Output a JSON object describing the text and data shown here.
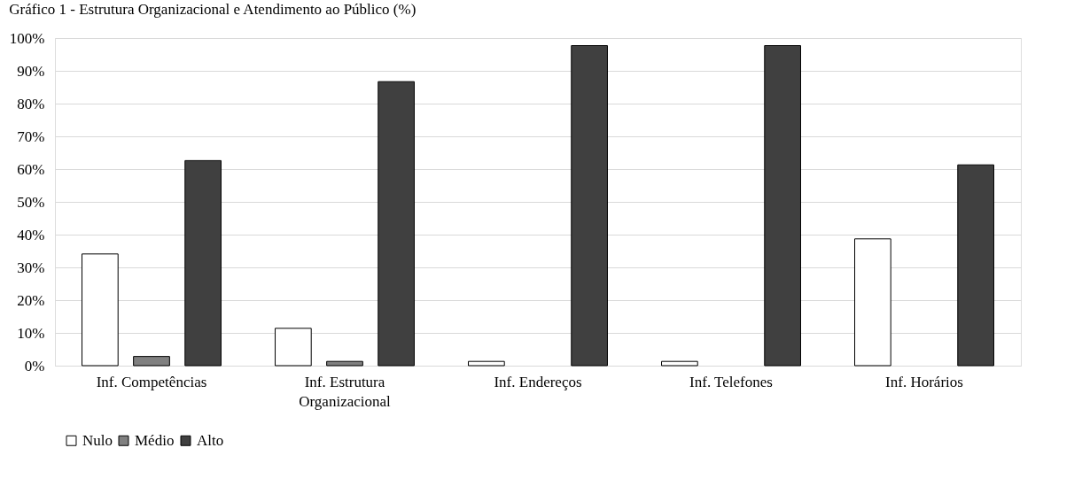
{
  "chart_data": {
    "type": "bar",
    "title": "Gráfico 1 - Estrutura Organizacional e Atendimento ao Público (%)",
    "categories": [
      "Inf. Competências",
      "Inf. Estrutura Organizacional",
      "Inf. Endereços",
      "Inf. Telefones",
      "Inf. Horários"
    ],
    "series": [
      {
        "name": "Nulo",
        "color": "#ffffff",
        "values": [
          34.1,
          11.4,
          1.3,
          1.3,
          38.7
        ]
      },
      {
        "name": "Médio",
        "color": "#808080",
        "values": [
          2.8,
          1.3,
          null,
          null,
          null
        ]
      },
      {
        "name": "Alto",
        "color": "#404040",
        "values": [
          62.6,
          86.7,
          97.7,
          97.7,
          61.3
        ]
      }
    ],
    "ylim": [
      0,
      100
    ],
    "yticks": [
      {
        "value": 0,
        "label": "0%"
      },
      {
        "value": 10,
        "label": "10%"
      },
      {
        "value": 20,
        "label": "20%"
      },
      {
        "value": 30,
        "label": "30%"
      },
      {
        "value": 40,
        "label": "40%"
      },
      {
        "value": 50,
        "label": "50%"
      },
      {
        "value": 60,
        "label": "60%"
      },
      {
        "value": 70,
        "label": "70%"
      },
      {
        "value": 80,
        "label": "80%"
      },
      {
        "value": 90,
        "label": "90%"
      },
      {
        "value": 100,
        "label": "100%"
      }
    ],
    "grid": "y",
    "legend": "bottom"
  }
}
